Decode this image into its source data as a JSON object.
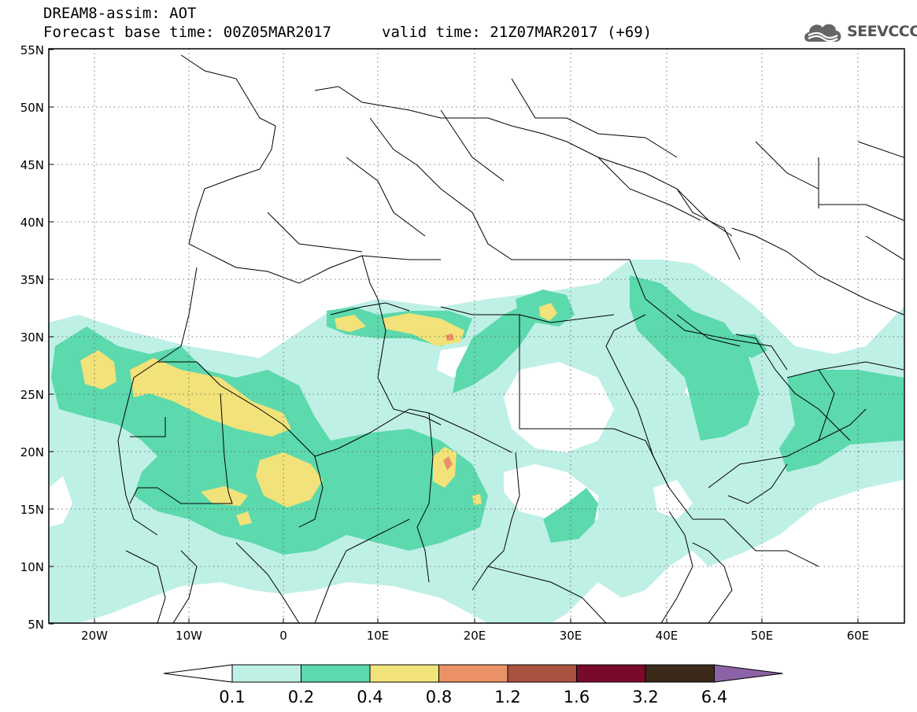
{
  "header": {
    "title_line1": "DREAM8-assim: AOT",
    "title_line2": "Forecast base time: 00Z05MAR2017",
    "valid_time": "valid time: 21Z07MAR2017 (+69)",
    "logo_text": "SEEVCCC"
  },
  "map": {
    "lat_labels": [
      "55N",
      "50N",
      "45N",
      "40N",
      "35N",
      "30N",
      "25N",
      "20N",
      "15N",
      "10N",
      "5N"
    ],
    "lon_labels": [
      "20W",
      "10W",
      "0",
      "10E",
      "20E",
      "30E",
      "40E",
      "50E",
      "60E"
    ]
  },
  "legend": {
    "tick_labels": [
      "0.1",
      "0.2",
      "0.4",
      "0.8",
      "1.2",
      "1.6",
      "3.2",
      "6.4"
    ],
    "colors": [
      "#bff0e6",
      "#5cd9ad",
      "#f2e27a",
      "#ea9265",
      "#a8523f",
      "#7a0a2a",
      "#3b2a1a",
      "#8c63a6"
    ]
  }
}
